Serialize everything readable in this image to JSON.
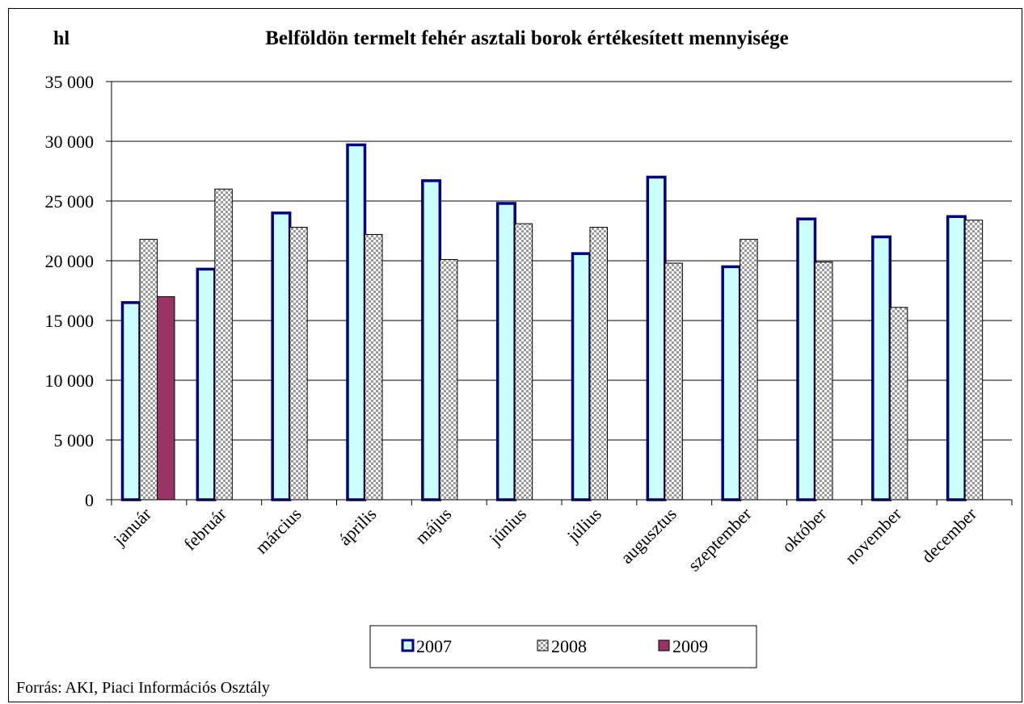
{
  "chart_data": {
    "type": "bar",
    "title": "Belföldön termelt fehér asztali borok értékesített mennyisége",
    "ylabel": "hl",
    "xlabel": "",
    "ylim": [
      0,
      35000
    ],
    "yticks": [
      0,
      5000,
      10000,
      15000,
      20000,
      25000,
      30000,
      35000
    ],
    "ytick_labels": [
      "0",
      "5 000",
      "10 000",
      "15 000",
      "20 000",
      "25 000",
      "30 000",
      "35 000"
    ],
    "categories": [
      "január",
      "február",
      "március",
      "április",
      "május",
      "június",
      "július",
      "augusztus",
      "szeptember",
      "október",
      "november",
      "december"
    ],
    "series": [
      {
        "name": "2007",
        "values": [
          16500,
          19300,
          24000,
          29700,
          26700,
          24800,
          20600,
          27000,
          19500,
          23500,
          22000,
          23700
        ],
        "fill": "#ccffff",
        "stroke": "#000080",
        "pattern": "solid"
      },
      {
        "name": "2008",
        "values": [
          21800,
          26000,
          22800,
          22200,
          20100,
          23100,
          22800,
          19800,
          21800,
          19900,
          16100,
          23400
        ],
        "fill": "#c0c0c0",
        "stroke": "#000000",
        "pattern": "checker"
      },
      {
        "name": "2009",
        "values": [
          17000,
          null,
          null,
          null,
          null,
          null,
          null,
          null,
          null,
          null,
          null,
          null
        ],
        "fill": "#993366",
        "stroke": "#000000",
        "pattern": "solid"
      }
    ],
    "grid": true,
    "legend_position": "bottom",
    "source": "Forrás: AKI, Piaci Információs Osztály"
  }
}
